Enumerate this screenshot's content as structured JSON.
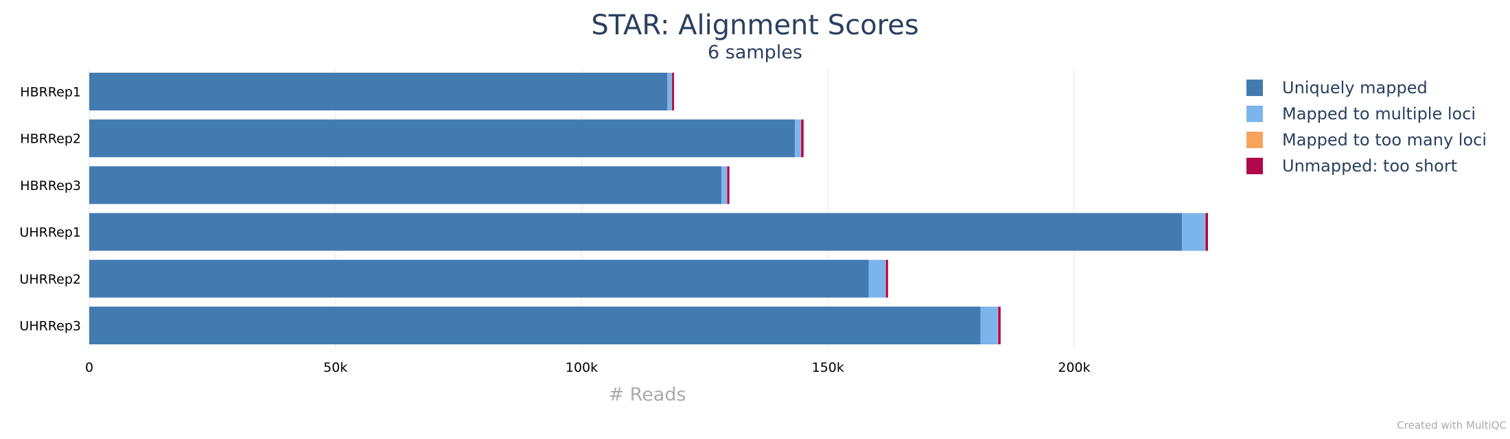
{
  "credit": "Created with MultiQC",
  "chart_data": {
    "type": "bar",
    "orientation": "horizontal",
    "stacked": true,
    "title": "STAR: Alignment Scores",
    "subtitle": "6 samples",
    "xlabel": "# Reads",
    "ylabel": "",
    "xlim": [
      0,
      240000
    ],
    "xticks": [
      0,
      50000,
      100000,
      150000,
      200000
    ],
    "xtick_labels": [
      "0",
      "50k",
      "100k",
      "150k",
      "200k"
    ],
    "grid": true,
    "legend_position": "top-right",
    "categories": [
      "HBRRep1",
      "HBRRep2",
      "HBRRep3",
      "UHRRep1",
      "UHRRep2",
      "UHRRep3"
    ],
    "series": [
      {
        "name": "Uniquely mapped",
        "color": "#437bb1",
        "values": [
          117400,
          143300,
          128400,
          221900,
          158300,
          181000
        ]
      },
      {
        "name": "Mapped to multiple loci",
        "color": "#7cb5ec",
        "values": [
          900,
          1200,
          1100,
          4700,
          3400,
          3500
        ]
      },
      {
        "name": "Mapped to too many loci",
        "color": "#f7a35c",
        "values": [
          50,
          60,
          50,
          80,
          60,
          70
        ]
      },
      {
        "name": "Unmapped: too short",
        "color": "#b1084c",
        "values": [
          400,
          500,
          450,
          500,
          450,
          500
        ]
      }
    ]
  }
}
